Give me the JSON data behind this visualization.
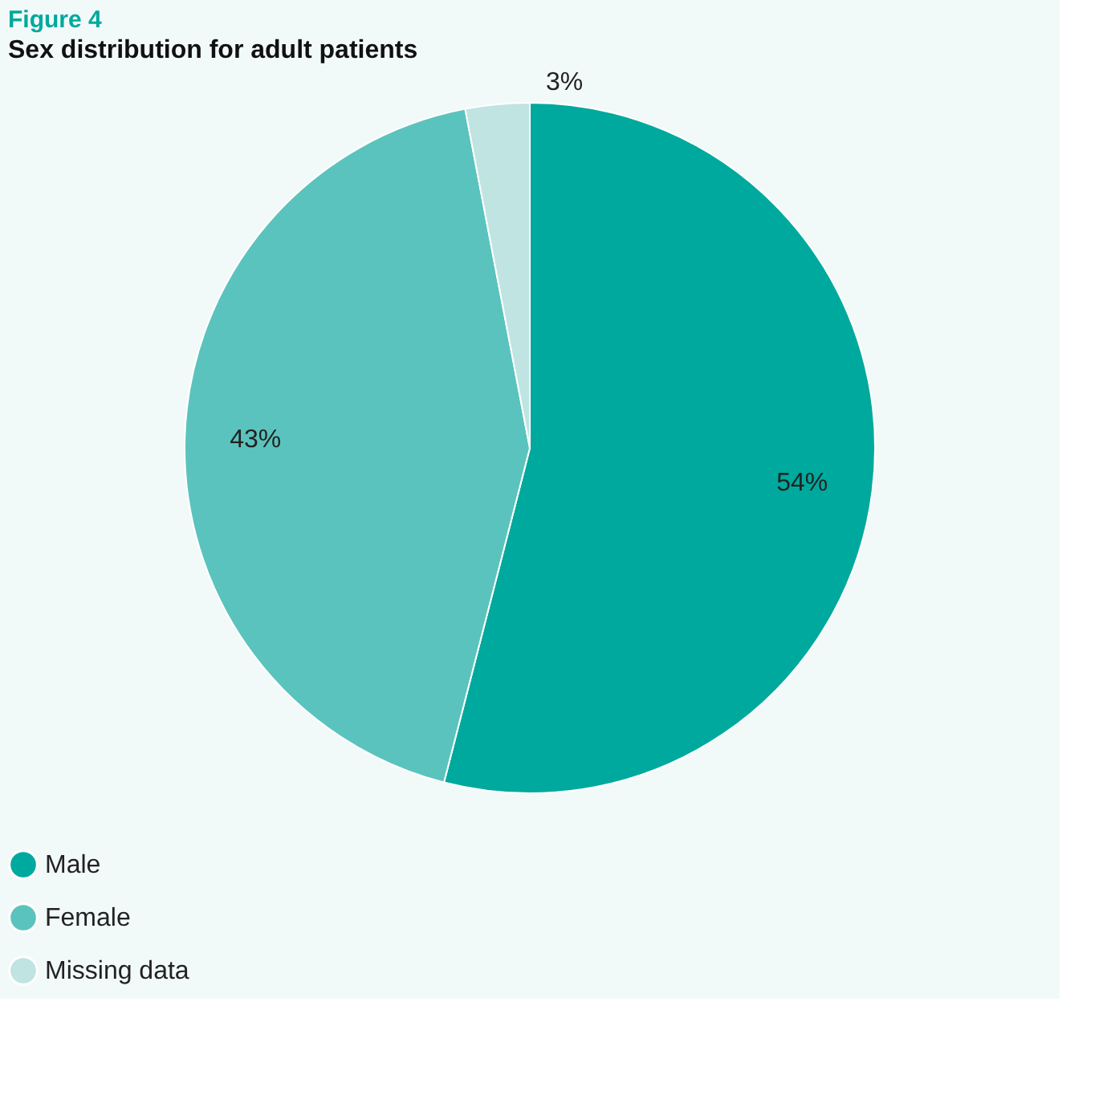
{
  "chart_data": {
    "type": "pie",
    "title": "Figure 4",
    "subtitle": "Sex distribution for adult patients",
    "categories": [
      "Male",
      "Female",
      "Missing data"
    ],
    "values": [
      54,
      43,
      3
    ],
    "colors": [
      "#00a99d",
      "#5bc3bd",
      "#bfe4e2"
    ],
    "value_labels": [
      "54%",
      "43%",
      "3%"
    ],
    "legend": "bottom"
  }
}
